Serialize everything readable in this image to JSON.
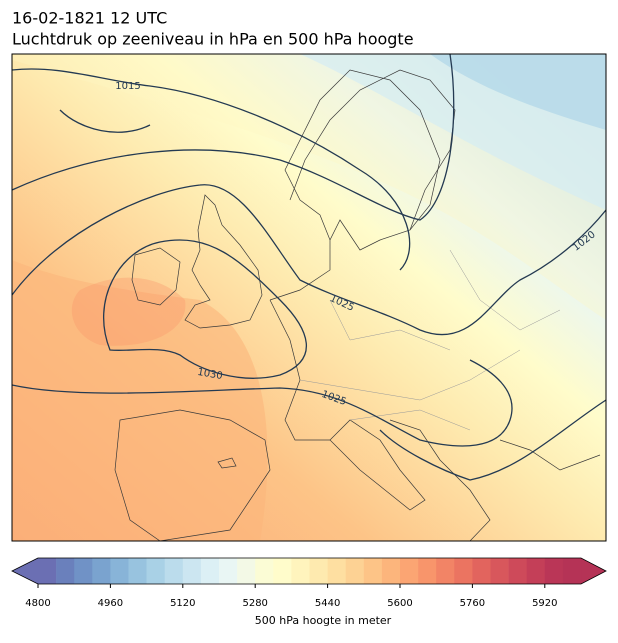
{
  "header": {
    "datetime": "16-02-1821 12 UTC",
    "title": "Luchtdruk op zeeniveau in hPa en 500 hPa hoogte"
  },
  "map": {
    "isobar_labels": [
      1015,
      1020,
      1025,
      1030,
      1025
    ]
  },
  "colorbar": {
    "label": "500 hPa hoogte in meter",
    "lim": [
      4800,
      6000
    ],
    "ticks": [
      4800,
      4960,
      5120,
      5280,
      5440,
      5600,
      5760,
      5920
    ],
    "colors": [
      "#6b6fb3",
      "#6a80bc",
      "#7092c6",
      "#7aa3cf",
      "#88b4d8",
      "#98c3df",
      "#a9d1e6",
      "#bbdcec",
      "#cce6f1",
      "#dcf0f5",
      "#e9f6f4",
      "#f3f9e6",
      "#fbfcd5",
      "#fffccb",
      "#fff4bd",
      "#feeaaf",
      "#fedfa1",
      "#fdd294",
      "#fdc487",
      "#fcb57c",
      "#fba573",
      "#f8956b",
      "#f28466",
      "#eb7461",
      "#e2645e",
      "#d8575c",
      "#ce4a5a",
      "#c43f58",
      "#ba3657",
      "#b53356"
    ]
  }
}
